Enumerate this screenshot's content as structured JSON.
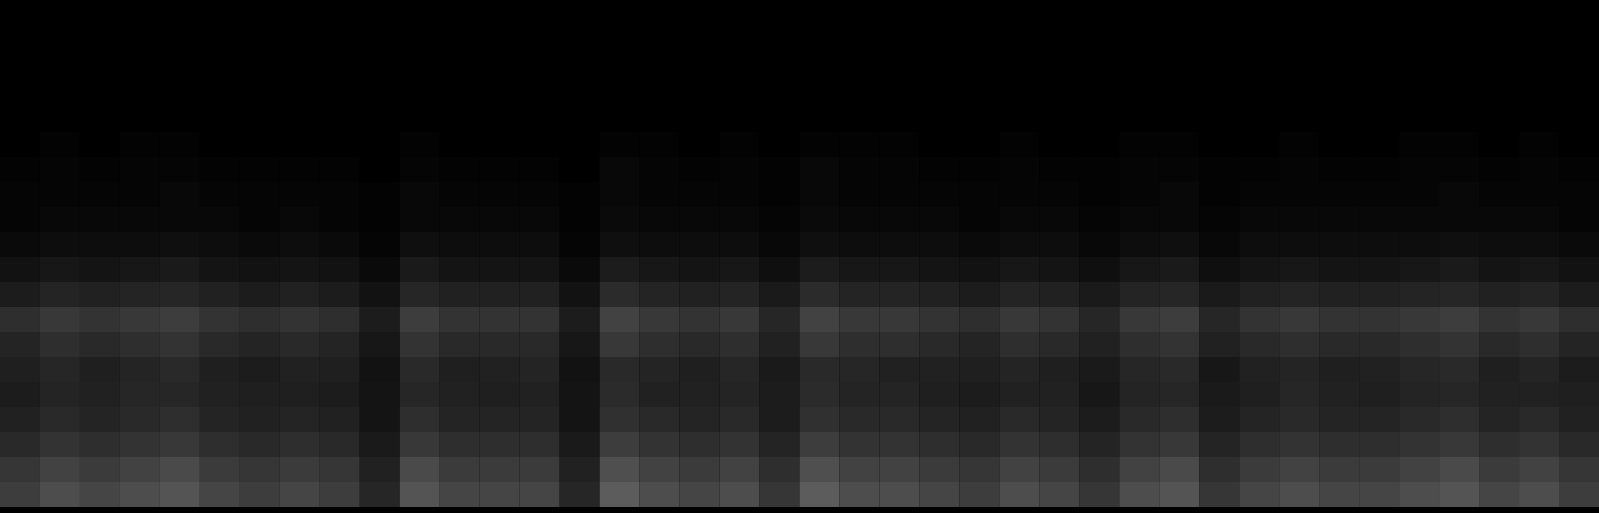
{
  "chart_data": {
    "type": "heatmap",
    "tick_labels": false,
    "color": "#ffffff",
    "zlim": [
      0,
      100
    ],
    "cells": [
      [
        0,
        0,
        0,
        0,
        0,
        0,
        0,
        0,
        0,
        0,
        0,
        0,
        0,
        0,
        0,
        0,
        0,
        0,
        0,
        0,
        0,
        0,
        0,
        0,
        0,
        0,
        0,
        0,
        0,
        0,
        0,
        0,
        0,
        0,
        0,
        0,
        0,
        0,
        0,
        0
      ],
      [
        0,
        0,
        0,
        0,
        0,
        0,
        0,
        0,
        0,
        0,
        0,
        0,
        0,
        0,
        0,
        0,
        0,
        0,
        0,
        0,
        0,
        0,
        0,
        0,
        0,
        0,
        0,
        0,
        0,
        0,
        0,
        0,
        0,
        0,
        0,
        0,
        0,
        0,
        0,
        0
      ],
      [
        0,
        0,
        0,
        0,
        0,
        0,
        0,
        0,
        0,
        0,
        0,
        0,
        0,
        0,
        0,
        0,
        0,
        0,
        0,
        0,
        0,
        0,
        0,
        0,
        0,
        0,
        0,
        0,
        0,
        0,
        0,
        0,
        0,
        0,
        0,
        0,
        0,
        0,
        0,
        0
      ],
      [
        0,
        0,
        0,
        0,
        0,
        0,
        0,
        0,
        0,
        0,
        0,
        0,
        0,
        0,
        0,
        0,
        0,
        0,
        0,
        0,
        0,
        0,
        0,
        0,
        0,
        0,
        0,
        0,
        0,
        0,
        0,
        0,
        0,
        0,
        0,
        0,
        0,
        0,
        0,
        0
      ],
      [
        0,
        0,
        0,
        0,
        0,
        0,
        0,
        0,
        0,
        0,
        0,
        0,
        0,
        0,
        0,
        0,
        0,
        0,
        0,
        0,
        0,
        0,
        0,
        0,
        0,
        0,
        0,
        0,
        0,
        0,
        0,
        0,
        0,
        0,
        0,
        0,
        0,
        0,
        0,
        0
      ],
      [
        0,
        1,
        0,
        1,
        1,
        0,
        0,
        0,
        0,
        0,
        1,
        0,
        0,
        0,
        0,
        1,
        1,
        0,
        1,
        0,
        1,
        1,
        1,
        0,
        0,
        1,
        0,
        0,
        1,
        1,
        0,
        0,
        1,
        0,
        0,
        1,
        1,
        0,
        1,
        0
      ],
      [
        1,
        2,
        1,
        2,
        2,
        1,
        1,
        1,
        1,
        0,
        2,
        1,
        1,
        1,
        0,
        3,
        2,
        1,
        2,
        1,
        3,
        2,
        2,
        1,
        1,
        2,
        1,
        1,
        2,
        2,
        1,
        1,
        2,
        1,
        1,
        2,
        2,
        1,
        2,
        1
      ],
      [
        2,
        2,
        2,
        2,
        3,
        2,
        2,
        2,
        2,
        1,
        3,
        2,
        2,
        2,
        1,
        3,
        2,
        2,
        2,
        1,
        3,
        2,
        2,
        2,
        2,
        2,
        2,
        1,
        2,
        3,
        1,
        2,
        2,
        2,
        2,
        2,
        3,
        2,
        2,
        2
      ],
      [
        2,
        3,
        3,
        3,
        3,
        3,
        2,
        3,
        2,
        1,
        3,
        3,
        3,
        3,
        1,
        4,
        3,
        3,
        3,
        2,
        4,
        3,
        3,
        3,
        2,
        3,
        3,
        2,
        3,
        3,
        2,
        3,
        3,
        3,
        3,
        3,
        3,
        3,
        3,
        2
      ],
      [
        4,
        5,
        5,
        5,
        6,
        5,
        4,
        5,
        4,
        2,
        6,
        5,
        5,
        5,
        2,
        6,
        5,
        5,
        5,
        3,
        6,
        5,
        5,
        5,
        4,
        5,
        5,
        3,
        5,
        6,
        3,
        5,
        5,
        5,
        5,
        5,
        6,
        5,
        5,
        4
      ],
      [
        7,
        9,
        8,
        9,
        10,
        8,
        7,
        8,
        7,
        4,
        10,
        8,
        8,
        8,
        4,
        11,
        9,
        8,
        9,
        6,
        11,
        9,
        9,
        8,
        7,
        9,
        8,
        6,
        9,
        10,
        6,
        8,
        9,
        8,
        8,
        9,
        10,
        8,
        9,
        7
      ],
      [
        11,
        14,
        13,
        14,
        15,
        13,
        11,
        13,
        11,
        7,
        15,
        13,
        13,
        13,
        7,
        17,
        14,
        13,
        14,
        10,
        17,
        14,
        14,
        13,
        11,
        14,
        13,
        10,
        14,
        15,
        10,
        13,
        14,
        13,
        13,
        14,
        15,
        13,
        14,
        11
      ],
      [
        18,
        22,
        20,
        22,
        24,
        20,
        18,
        20,
        18,
        11,
        24,
        20,
        20,
        20,
        11,
        26,
        22,
        20,
        22,
        15,
        26,
        22,
        22,
        20,
        18,
        22,
        20,
        15,
        22,
        24,
        15,
        20,
        22,
        20,
        20,
        22,
        24,
        20,
        22,
        18
      ],
      [
        14,
        18,
        16,
        18,
        20,
        16,
        14,
        16,
        14,
        9,
        20,
        16,
        16,
        16,
        9,
        22,
        18,
        16,
        18,
        13,
        22,
        18,
        18,
        16,
        14,
        18,
        16,
        13,
        18,
        20,
        13,
        16,
        18,
        16,
        16,
        18,
        20,
        16,
        18,
        14
      ],
      [
        12,
        15,
        12,
        14,
        16,
        12,
        11,
        13,
        12,
        7,
        16,
        12,
        13,
        14,
        7,
        16,
        14,
        12,
        15,
        10,
        16,
        15,
        13,
        13,
        12,
        14,
        12,
        10,
        15,
        16,
        9,
        13,
        14,
        12,
        13,
        15,
        16,
        12,
        14,
        11
      ],
      [
        11,
        14,
        13,
        15,
        15,
        13,
        12,
        12,
        11,
        8,
        15,
        13,
        12,
        13,
        8,
        17,
        13,
        13,
        14,
        11,
        17,
        14,
        14,
        12,
        11,
        13,
        13,
        9,
        14,
        15,
        10,
        12,
        15,
        13,
        12,
        14,
        15,
        13,
        13,
        12
      ],
      [
        13,
        16,
        14,
        16,
        18,
        14,
        13,
        14,
        13,
        8,
        18,
        14,
        14,
        14,
        8,
        19,
        16,
        14,
        16,
        11,
        19,
        16,
        16,
        14,
        13,
        16,
        14,
        11,
        16,
        18,
        11,
        14,
        16,
        14,
        14,
        16,
        18,
        14,
        16,
        13
      ],
      [
        16,
        20,
        18,
        20,
        22,
        18,
        16,
        18,
        16,
        10,
        22,
        18,
        18,
        18,
        10,
        24,
        20,
        18,
        20,
        14,
        24,
        20,
        20,
        18,
        16,
        20,
        18,
        14,
        20,
        22,
        14,
        18,
        20,
        18,
        18,
        20,
        22,
        18,
        20,
        16
      ],
      [
        21,
        26,
        23,
        26,
        29,
        23,
        21,
        23,
        21,
        13,
        29,
        23,
        23,
        23,
        13,
        31,
        26,
        23,
        26,
        18,
        31,
        26,
        26,
        23,
        21,
        26,
        23,
        18,
        26,
        29,
        18,
        23,
        26,
        23,
        23,
        26,
        29,
        23,
        26,
        21
      ],
      [
        24,
        30,
        27,
        30,
        33,
        27,
        24,
        27,
        24,
        15,
        33,
        27,
        27,
        27,
        15,
        36,
        30,
        27,
        30,
        21,
        36,
        30,
        30,
        27,
        24,
        30,
        27,
        21,
        30,
        33,
        21,
        27,
        30,
        27,
        27,
        30,
        33,
        27,
        30,
        24
      ]
    ]
  }
}
